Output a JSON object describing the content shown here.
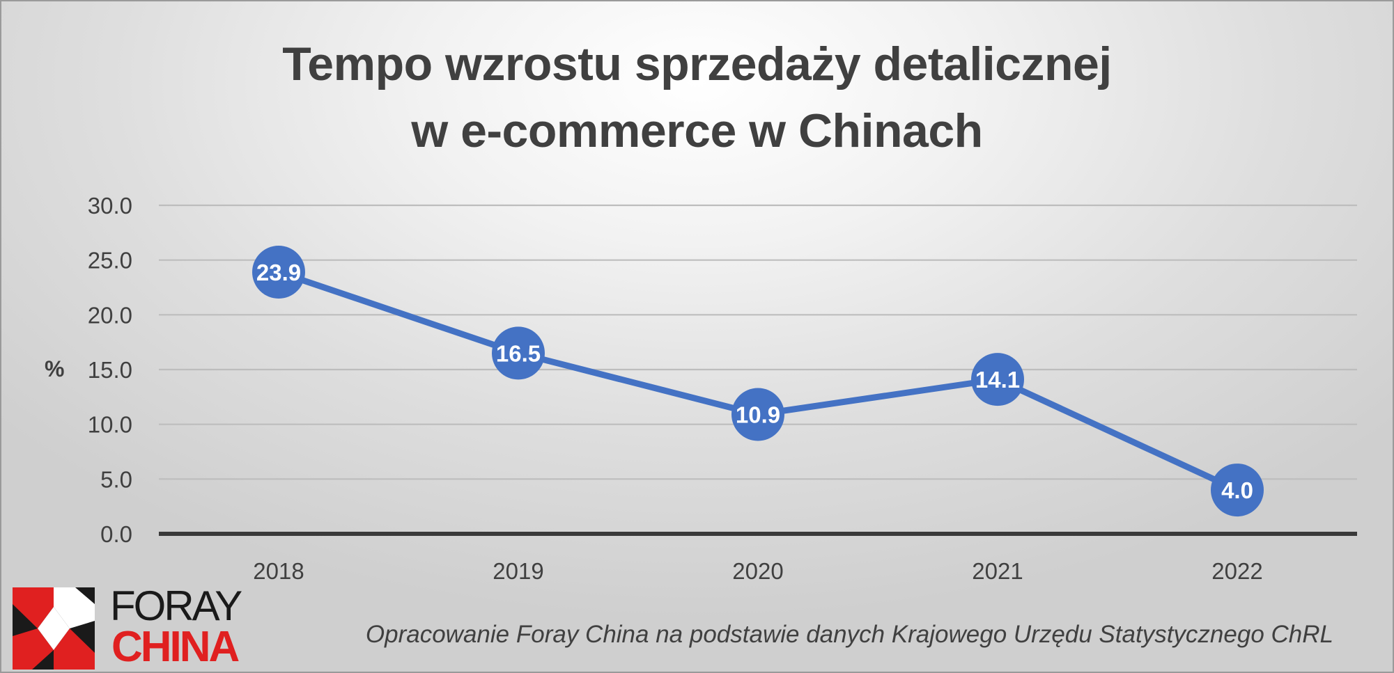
{
  "chart_data": {
    "type": "line",
    "title_line1": "Tempo wzrostu sprzedaży detalicznej",
    "title_line2": "w e-commerce w Chinach",
    "ylabel": "%",
    "xlabel": "",
    "categories": [
      "2018",
      "2019",
      "2020",
      "2021",
      "2022"
    ],
    "values": [
      23.9,
      16.5,
      10.9,
      14.1,
      4.0
    ],
    "data_labels": [
      "23.9",
      "16.5",
      "10.9",
      "14.1",
      "4.0"
    ],
    "ylim": [
      0,
      30
    ],
    "y_ticks": [
      "0.0",
      "5.0",
      "10.0",
      "15.0",
      "20.0",
      "25.0",
      "30.0"
    ],
    "y_tick_values": [
      0,
      5,
      10,
      15,
      20,
      25,
      30
    ],
    "grid": true,
    "legend": "none",
    "line_color": "#4472C4",
    "grid_color": "#bdbdbd",
    "axis_color": "#3a3a3a"
  },
  "source_note": "Opracowanie Foray China na podstawie danych Krajowego Urzędu Statystycznego ChRL",
  "logo": {
    "word1": "FORAY",
    "word2": "CHINA",
    "accent_color": "#e02020"
  }
}
